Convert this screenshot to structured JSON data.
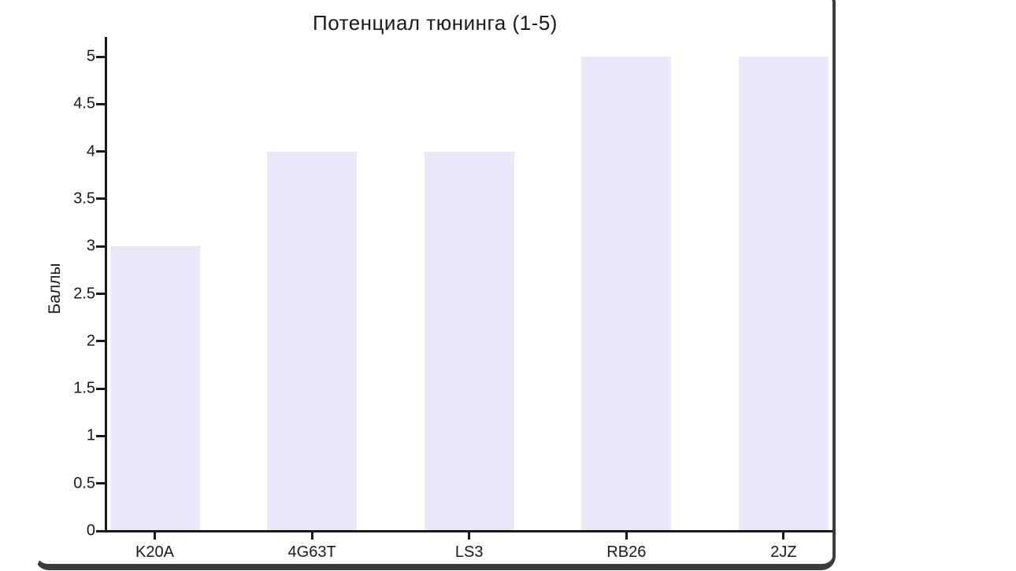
{
  "window": {
    "border_color": "#3b3b3b",
    "background": "#ffffff"
  },
  "chart_data": {
    "type": "bar",
    "title": "Потенциал тюнинга (1-5)",
    "xlabel": "",
    "ylabel": "Баллы",
    "categories": [
      "K20A",
      "4G63T",
      "LS3",
      "RB26",
      "2JZ"
    ],
    "values": [
      3,
      4,
      4,
      5,
      5
    ],
    "ylim": [
      0,
      5
    ],
    "yticks": [
      0,
      0.5,
      1,
      1.5,
      2,
      2.5,
      3,
      3.5,
      4,
      4.5,
      5
    ],
    "grid": false,
    "legend": null,
    "bar_color": "#e8e8fa",
    "axis_color": "#1a1a1a",
    "text_color": "#1a1a1a"
  }
}
